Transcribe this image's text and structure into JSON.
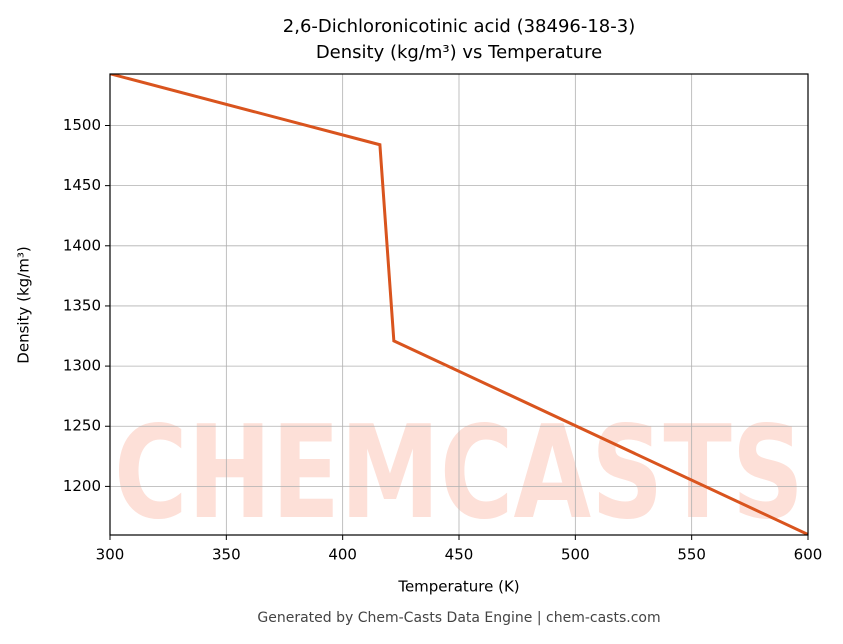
{
  "chart_data": {
    "type": "line",
    "title": "2,6-Dichloronicotinic acid (38496-18-3)",
    "subtitle": "Density (kg/m³) vs Temperature",
    "x_label": "Temperature (K)",
    "y_label": "Density (kg/m³)",
    "footer": "Generated by Chem-Casts Data Engine | chem-casts.com",
    "watermark": "CHEMCASTS",
    "x": [
      300,
      416,
      422,
      600
    ],
    "series": [
      {
        "name": "Density",
        "color": "#d9541e",
        "values": [
          1543,
          1484,
          1321,
          1160
        ]
      }
    ],
    "xlim": [
      300,
      600
    ],
    "xticks": [
      300,
      350,
      400,
      450,
      500,
      550,
      600
    ],
    "ylim": [
      1159.6,
      1542.8
    ],
    "yticks": [
      1200,
      1250,
      1300,
      1350,
      1400,
      1450,
      1500
    ],
    "grid": true
  }
}
